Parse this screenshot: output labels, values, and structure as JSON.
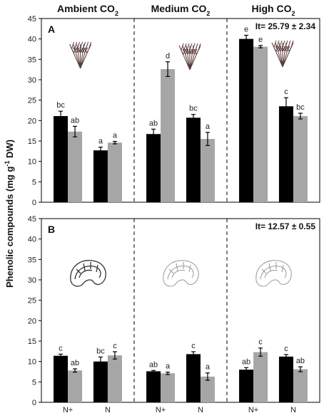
{
  "chart_data": {
    "type": "bar",
    "ylabel": "Phenolic compounds (mg g",
    "ylabel_sup": "-1",
    "ylabel_tail": " DW)",
    "groups": [
      {
        "label": "Ambient CO",
        "sub": "2"
      },
      {
        "label": "Medium CO",
        "sub": "2"
      },
      {
        "label": "High CO",
        "sub": "2"
      }
    ],
    "categories": [
      "N+",
      "N",
      "N+",
      "N",
      "N+",
      "N"
    ],
    "series_colors": [
      "#000000",
      "#a6a6a6"
    ],
    "panels": [
      {
        "label": "A",
        "annotation": "It= 25.79 ± 2.34",
        "ylim": [
          0,
          45
        ],
        "yticks": [
          0,
          5,
          10,
          15,
          20,
          25,
          30,
          35,
          40,
          45
        ],
        "series": [
          {
            "values": [
              21.1,
              12.7,
              16.7,
              20.7,
              40.0,
              23.5
            ],
            "errors": [
              1.2,
              0.8,
              1.2,
              0.8,
              0.9,
              2.1
            ],
            "letters": [
              "bc",
              "a",
              "ab",
              "bc",
              "e",
              "c"
            ]
          },
          {
            "values": [
              17.3,
              14.6,
              32.6,
              15.5,
              38.1,
              21.1
            ],
            "errors": [
              1.3,
              0.3,
              1.8,
              1.6,
              0.3,
              0.7
            ],
            "letters": [
              "ab",
              "a",
              "d",
              "a",
              "e",
              "bc"
            ]
          }
        ]
      },
      {
        "label": "B",
        "annotation": "It= 12.57 ± 0.55",
        "ylim": [
          0,
          45
        ],
        "yticks": [
          0,
          5,
          10,
          15,
          20,
          25,
          30,
          35,
          40,
          45
        ],
        "series": [
          {
            "values": [
              11.4,
              10.0,
              7.6,
              11.8,
              8.0,
              11.2
            ],
            "errors": [
              0.4,
              1.1,
              0.2,
              0.6,
              0.5,
              0.5
            ],
            "letters": [
              "c",
              "bc",
              "ab",
              "c",
              "ab",
              "c"
            ]
          },
          {
            "values": [
              7.8,
              11.5,
              7.1,
              6.3,
              12.3,
              8.1
            ],
            "errors": [
              0.4,
              0.9,
              0.3,
              0.9,
              1.0,
              0.6
            ],
            "letters": [
              "ab",
              "c",
              "a",
              "a",
              "c",
              "ab"
            ]
          }
        ]
      }
    ],
    "legend": "none",
    "grid": false
  }
}
